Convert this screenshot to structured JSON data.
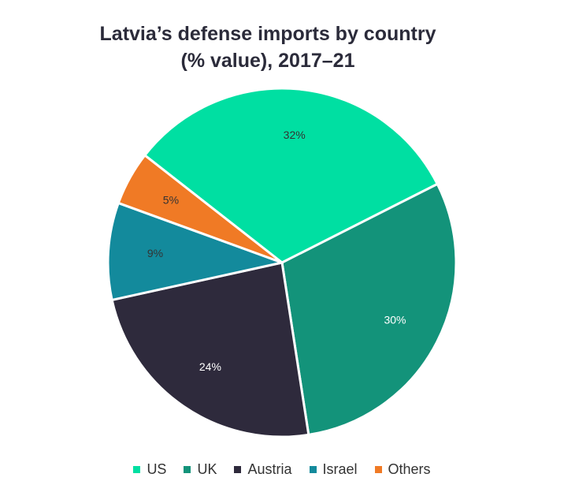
{
  "chart_data": {
    "type": "pie",
    "title_line1": "Latvia’s defense imports by country",
    "title_line2": "(% value), 2017–21",
    "categories": [
      "US",
      "UK",
      "Austria",
      "Israel",
      "Others"
    ],
    "values": [
      32,
      30,
      24,
      9,
      5
    ],
    "labels": [
      "32%",
      "30%",
      "24%",
      "9%",
      "5%"
    ],
    "colors": [
      "#00DFA2",
      "#13937A",
      "#2E2A3C",
      "#138A9C",
      "#F07A25"
    ],
    "label_colors": [
      "#333333",
      "#ffffff",
      "#ffffff",
      "#333333",
      "#333333"
    ],
    "legend_position": "bottom"
  }
}
